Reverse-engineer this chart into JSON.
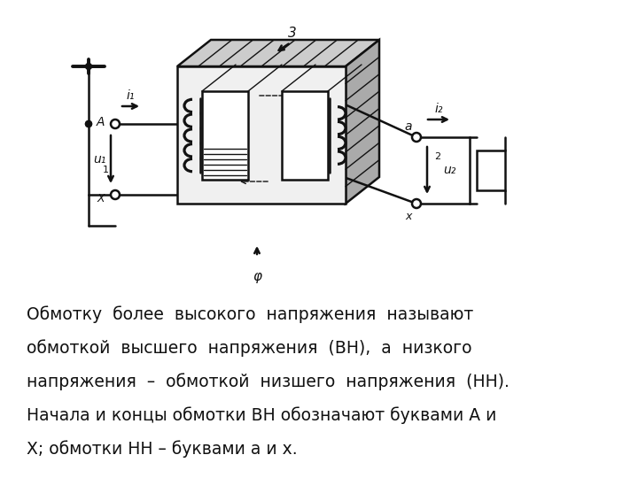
{
  "bg_color": "#ffffff",
  "text_lines": [
    "Обмотку  более  высокого  напряжения  называют",
    "обмоткой  высшего  напряжения  (ВН),  а  низкого",
    "напряжения  –  обмоткой  низшего  напряжения  (НН).",
    "Начала и концы обмотки ВН обозначают буквами А и",
    "Х; обмотки НН – буквами а и х."
  ],
  "text_fontsize": 13.5,
  "diagram_color": "#111111",
  "figsize": [
    7.2,
    5.4
  ],
  "dpi": 100
}
